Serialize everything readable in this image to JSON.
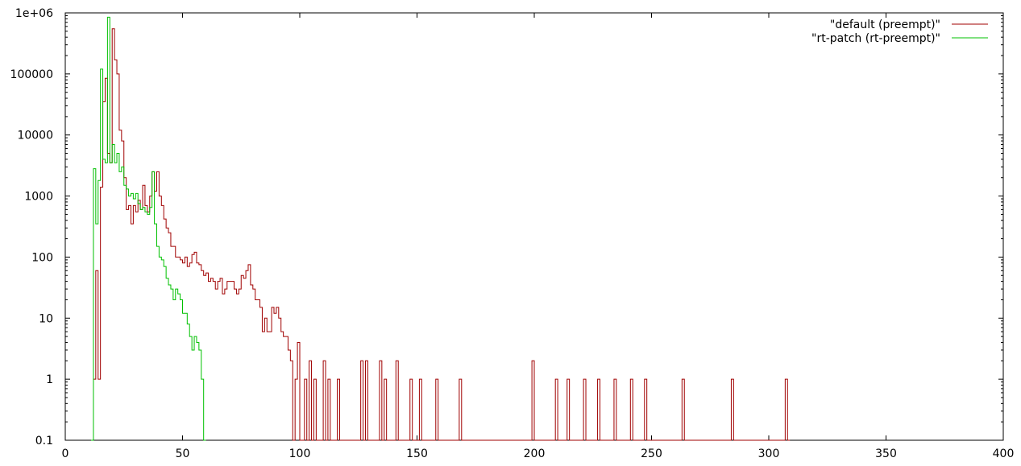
{
  "chart_data": {
    "type": "line",
    "title": "",
    "xlabel": "",
    "ylabel": "",
    "xlim": [
      0,
      400
    ],
    "ylim": [
      0.1,
      1000000
    ],
    "yscale": "log",
    "grid": false,
    "legend_position": "top-right",
    "x_ticks": [
      0,
      50,
      100,
      150,
      200,
      250,
      300,
      350,
      400
    ],
    "y_ticks": [
      0.1,
      1,
      10,
      100,
      1000,
      10000,
      100000,
      1000000
    ],
    "x_tick_labels": [
      "0",
      "50",
      "100",
      "150",
      "200",
      "250",
      "300",
      "350",
      "400"
    ],
    "y_tick_labels": [
      "0.1",
      "1",
      "10",
      "100",
      "1000",
      "10000",
      "100000",
      "1e+06"
    ],
    "step": true,
    "series": [
      {
        "name": "\"default (preempt)\"",
        "color": "#a00000",
        "points": [
          [
            12,
            1
          ],
          [
            13,
            60
          ],
          [
            14,
            1
          ],
          [
            15,
            1400
          ],
          [
            16,
            35000
          ],
          [
            17,
            85000
          ],
          [
            18,
            5000
          ],
          [
            19,
            3500
          ],
          [
            20,
            550000
          ],
          [
            21,
            170000
          ],
          [
            22,
            100000
          ],
          [
            23,
            12000
          ],
          [
            24,
            8000
          ],
          [
            25,
            2000
          ],
          [
            26,
            600
          ],
          [
            27,
            700
          ],
          [
            28,
            350
          ],
          [
            29,
            700
          ],
          [
            30,
            550
          ],
          [
            31,
            850
          ],
          [
            32,
            600
          ],
          [
            33,
            1500
          ],
          [
            34,
            700
          ],
          [
            35,
            550
          ],
          [
            36,
            1000
          ],
          [
            37,
            2500
          ],
          [
            38,
            1200
          ],
          [
            39,
            2500
          ],
          [
            40,
            1000
          ],
          [
            41,
            700
          ],
          [
            42,
            420
          ],
          [
            43,
            300
          ],
          [
            44,
            250
          ],
          [
            45,
            150
          ],
          [
            46,
            150
          ],
          [
            47,
            100
          ],
          [
            48,
            100
          ],
          [
            49,
            90
          ],
          [
            50,
            80
          ],
          [
            51,
            100
          ],
          [
            52,
            70
          ],
          [
            53,
            80
          ],
          [
            54,
            110
          ],
          [
            55,
            120
          ],
          [
            56,
            80
          ],
          [
            57,
            75
          ],
          [
            58,
            60
          ],
          [
            59,
            50
          ],
          [
            60,
            55
          ],
          [
            61,
            40
          ],
          [
            62,
            45
          ],
          [
            63,
            40
          ],
          [
            64,
            30
          ],
          [
            65,
            40
          ],
          [
            66,
            45
          ],
          [
            67,
            25
          ],
          [
            68,
            30
          ],
          [
            69,
            40
          ],
          [
            70,
            40
          ],
          [
            71,
            40
          ],
          [
            72,
            30
          ],
          [
            73,
            25
          ],
          [
            74,
            30
          ],
          [
            75,
            50
          ],
          [
            76,
            45
          ],
          [
            77,
            60
          ],
          [
            78,
            75
          ],
          [
            79,
            35
          ],
          [
            80,
            30
          ],
          [
            81,
            20
          ],
          [
            82,
            20
          ],
          [
            83,
            15
          ],
          [
            84,
            6
          ],
          [
            85,
            10
          ],
          [
            86,
            6
          ],
          [
            87,
            6
          ],
          [
            88,
            15
          ],
          [
            89,
            12
          ],
          [
            90,
            15
          ],
          [
            91,
            10
          ],
          [
            92,
            6
          ],
          [
            93,
            5
          ],
          [
            94,
            5
          ],
          [
            95,
            3
          ],
          [
            96,
            2
          ],
          [
            97,
            0.1
          ],
          [
            98,
            1
          ],
          [
            99,
            4
          ],
          [
            100,
            0.1
          ],
          [
            102,
            1
          ],
          [
            103,
            0.1
          ],
          [
            104,
            2
          ],
          [
            105,
            0.1
          ],
          [
            106,
            1
          ],
          [
            107,
            0.1
          ],
          [
            110,
            2
          ],
          [
            111,
            0.1
          ],
          [
            112,
            1
          ],
          [
            113,
            0.1
          ],
          [
            116,
            1
          ],
          [
            117,
            0.1
          ],
          [
            126,
            2
          ],
          [
            127,
            0.1
          ],
          [
            128,
            2
          ],
          [
            129,
            0.1
          ],
          [
            134,
            2
          ],
          [
            135,
            0.1
          ],
          [
            136,
            1
          ],
          [
            137,
            0.1
          ],
          [
            141,
            2
          ],
          [
            142,
            0.1
          ],
          [
            147,
            1
          ],
          [
            148,
            0.1
          ],
          [
            151,
            1
          ],
          [
            152,
            0.1
          ],
          [
            158,
            1
          ],
          [
            159,
            0.1
          ],
          [
            168,
            1
          ],
          [
            169,
            0.1
          ],
          [
            199,
            2
          ],
          [
            200,
            0.1
          ],
          [
            209,
            1
          ],
          [
            210,
            0.1
          ],
          [
            214,
            1
          ],
          [
            215,
            0.1
          ],
          [
            221,
            1
          ],
          [
            222,
            0.1
          ],
          [
            227,
            1
          ],
          [
            228,
            0.1
          ],
          [
            234,
            1
          ],
          [
            235,
            0.1
          ],
          [
            241,
            1
          ],
          [
            242,
            0.1
          ],
          [
            247,
            1
          ],
          [
            248,
            0.1
          ],
          [
            263,
            1
          ],
          [
            264,
            0.1
          ],
          [
            284,
            1
          ],
          [
            285,
            0.1
          ],
          [
            307,
            1
          ],
          [
            308,
            0.1
          ]
        ]
      },
      {
        "name": "\"rt-patch (rt-preempt)\"",
        "color": "#00c000",
        "points": [
          [
            11,
            0.1
          ],
          [
            12,
            2800
          ],
          [
            13,
            350
          ],
          [
            14,
            1800
          ],
          [
            15,
            120000
          ],
          [
            16,
            4000
          ],
          [
            17,
            3500
          ],
          [
            18,
            850000
          ],
          [
            19,
            3500
          ],
          [
            20,
            7000
          ],
          [
            21,
            3500
          ],
          [
            22,
            5000
          ],
          [
            23,
            2500
          ],
          [
            24,
            3000
          ],
          [
            25,
            1500
          ],
          [
            26,
            1300
          ],
          [
            27,
            1000
          ],
          [
            28,
            1100
          ],
          [
            29,
            900
          ],
          [
            30,
            1100
          ],
          [
            31,
            750
          ],
          [
            32,
            600
          ],
          [
            33,
            650
          ],
          [
            34,
            550
          ],
          [
            35,
            500
          ],
          [
            36,
            650
          ],
          [
            37,
            2500
          ],
          [
            38,
            350
          ],
          [
            39,
            150
          ],
          [
            40,
            100
          ],
          [
            41,
            90
          ],
          [
            42,
            70
          ],
          [
            43,
            45
          ],
          [
            44,
            35
          ],
          [
            45,
            30
          ],
          [
            46,
            20
          ],
          [
            47,
            30
          ],
          [
            48,
            25
          ],
          [
            49,
            20
          ],
          [
            50,
            12
          ],
          [
            51,
            12
          ],
          [
            52,
            8
          ],
          [
            53,
            5
          ],
          [
            54,
            3
          ],
          [
            55,
            5
          ],
          [
            56,
            4
          ],
          [
            57,
            3
          ],
          [
            58,
            1
          ],
          [
            59,
            0.1
          ]
        ]
      }
    ]
  }
}
